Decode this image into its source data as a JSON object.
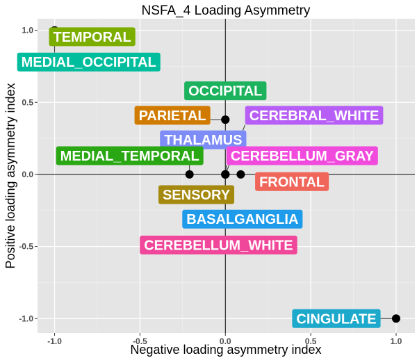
{
  "chart_data": {
    "type": "scatter",
    "title": "NSFA_4 Loading Asymmetry",
    "xlabel": "Negative loading asymmetry index",
    "ylabel": "Positive loading asymmetry index",
    "xlim": [
      -1.1,
      1.11
    ],
    "ylim": [
      -1.1,
      1.08
    ],
    "xticks": [
      -1.0,
      -0.5,
      0.0,
      0.5,
      1.0
    ],
    "xtick_labels": [
      "-1.0",
      "-0.5",
      "0.0",
      "0.5",
      "1.0"
    ],
    "yticks": [
      -1.0,
      -0.5,
      0.0,
      0.5,
      1.0
    ],
    "ytick_labels": [
      "-1.0",
      "-0.5",
      "0.0",
      "0.5",
      "1.0"
    ],
    "grid": true,
    "reference_lines": {
      "x": 0,
      "y": 0
    },
    "points": [
      {
        "label": "TEMPORAL",
        "x": -1.0,
        "y": 1.0,
        "color": "#7CAE00",
        "label_x": -0.78,
        "label_y": 0.955
      },
      {
        "label": "MEDIAL_OCCIPITAL",
        "x": -1.0,
        "y": 0.99,
        "color": "#00BE9D",
        "label_x": -0.8,
        "label_y": 0.78
      },
      {
        "label": "OCCIPITAL",
        "x": 0.0,
        "y": 0.38,
        "color": "#1DB35E",
        "label_x": 0.0,
        "label_y": 0.58
      },
      {
        "label": "PARIETAL",
        "x": 0.0,
        "y": 0.38,
        "color": "#D07A00",
        "label_x": -0.31,
        "label_y": 0.41
      },
      {
        "label": "CEREBRAL_WHITE",
        "x": 0.0,
        "y": 0.0,
        "color": "#B65EF5",
        "label_x": 0.52,
        "label_y": 0.41
      },
      {
        "label": "THALAMUS",
        "x": 0.0,
        "y": 0.0,
        "color": "#7D8CF7",
        "label_x": -0.13,
        "label_y": 0.24
      },
      {
        "label": "CEREBELLUM_GRAY",
        "x": 0.0,
        "y": 0.0,
        "color": "#F14BDD",
        "label_x": 0.45,
        "label_y": 0.13
      },
      {
        "label": "MEDIAL_TEMPORAL",
        "x": -0.21,
        "y": 0.0,
        "color": "#2AA814",
        "label_x": -0.56,
        "label_y": 0.13
      },
      {
        "label": "FRONTAL",
        "x": 0.09,
        "y": 0.0,
        "color": "#F0665A",
        "label_x": 0.39,
        "label_y": -0.05
      },
      {
        "label": "SENSORY",
        "x": 0.0,
        "y": 0.0,
        "color": "#A5880E",
        "label_x": -0.17,
        "label_y": -0.14
      },
      {
        "label": "BASALGANGLIA",
        "x": 0.0,
        "y": 0.0,
        "color": "#1E9BEA",
        "label_x": 0.1,
        "label_y": -0.31
      },
      {
        "label": "CEREBELLUM_WHITE",
        "x": 0.0,
        "y": 0.0,
        "color": "#F0479A",
        "label_x": -0.04,
        "label_y": -0.49
      },
      {
        "label": "CINGULATE",
        "x": 1.0,
        "y": -1.0,
        "color": "#1DA9CB",
        "label_x": 0.65,
        "label_y": -1.0
      }
    ]
  }
}
